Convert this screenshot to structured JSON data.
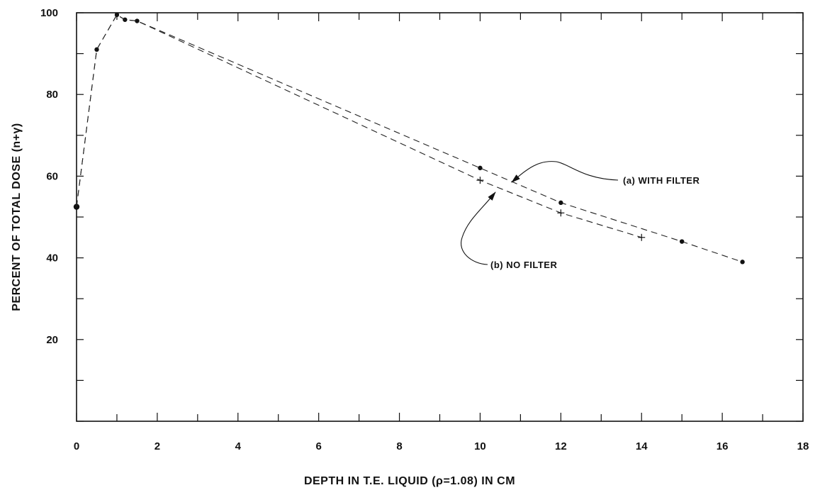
{
  "chart_data": {
    "type": "line",
    "xlabel": "DEPTH IN T.E. LIQUID (ρ=1.08) IN CM",
    "ylabel": "PERCENT OF TOTAL DOSE (n+γ)",
    "xlim": [
      0,
      18
    ],
    "ylim": [
      0,
      100
    ],
    "x_ticks": [
      "0",
      "2",
      "4",
      "6",
      "8",
      "10",
      "12",
      "14",
      "16",
      "18"
    ],
    "y_ticks": [
      "20",
      "40",
      "60",
      "80",
      "100"
    ],
    "grid": false,
    "series": [
      {
        "name": "(a) WITH FILTER",
        "marker": "dot",
        "x": [
          0.0,
          0.5,
          1.0,
          1.2,
          1.5,
          10,
          12,
          15,
          16.5
        ],
        "y": [
          52.5,
          91,
          99.5,
          98.3,
          98,
          62,
          53.5,
          44,
          39
        ]
      },
      {
        "name": "(b) NO FILTER",
        "marker": "plus",
        "x": [
          0.0,
          0.5,
          1.0,
          1.2,
          1.5,
          10,
          12,
          14
        ],
        "y": [
          52.5,
          91,
          99.5,
          98.3,
          98,
          59,
          51,
          45
        ]
      }
    ],
    "annotations": [
      {
        "text": "(a) WITH FILTER",
        "points_to": [
          10.6,
          59
        ]
      },
      {
        "text": "(b) NO FILTER",
        "points_to": [
          10.4,
          56
        ]
      }
    ]
  }
}
